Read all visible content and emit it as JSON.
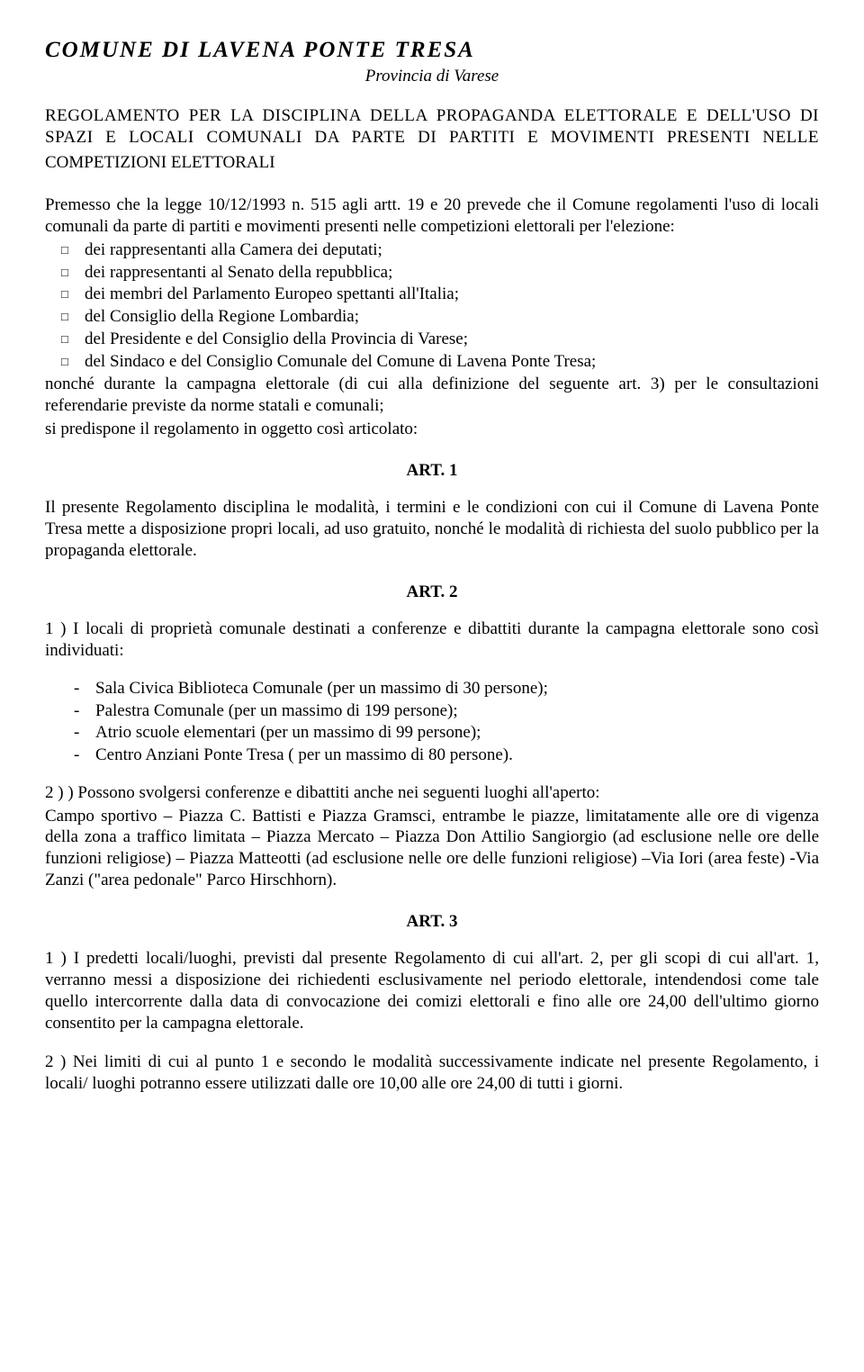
{
  "header": {
    "title": "COMUNE DI LAVENA PONTE TRESA",
    "subtitle": "Provincia di Varese"
  },
  "regulation_title": {
    "line1": "REGOLAMENTO PER LA DISCIPLINA DELLA PROPAGANDA ELETTORALE E DELL'USO DI SPAZI E LOCALI COMUNALI DA PARTE DI PARTITI E MOVIMENTI PRESENTI NELLE",
    "line2": "COMPETIZIONI ELETTORALI"
  },
  "preamble": {
    "intro": "Premesso che la legge 10/12/1993 n. 515 agli artt. 19 e 20 prevede che il Comune regolamenti l'uso di locali comunali da parte di partiti e movimenti presenti nelle competizioni elettorali per l'elezione:",
    "bullets": [
      "dei rappresentanti alla Camera dei deputati;",
      "dei rappresentanti al Senato della repubblica;",
      "dei membri del Parlamento Europeo spettanti all'Italia;",
      "del Consiglio della Regione Lombardia;",
      "del Presidente e del Consiglio della Provincia di Varese;",
      "del Sindaco e del Consiglio Comunale del Comune di Lavena Ponte Tresa;"
    ],
    "closing": "nonché durante la campagna elettorale (di cui alla definizione del seguente art. 3) per le consultazioni referendarie previste da norme statali e comunali;",
    "disposition": "si predispone il regolamento in oggetto così articolato:"
  },
  "art1": {
    "heading": "ART. 1",
    "body": "Il presente Regolamento disciplina le modalità, i termini e le condizioni con cui il Comune di Lavena Ponte Tresa mette a disposizione propri locali, ad uso gratuito, nonché le modalità di richiesta del suolo pubblico per la propaganda elettorale."
  },
  "art2": {
    "heading": "ART. 2",
    "p1": "1 ) I locali di proprietà comunale destinati a conferenze e dibattiti durante la campagna elettorale sono così individuati:",
    "items": [
      "Sala Civica Biblioteca Comunale (per un massimo di 30 persone);",
      "Palestra Comunale (per un massimo di 199 persone);",
      "Atrio scuole elementari (per un massimo di 99 persone);",
      "Centro Anziani Ponte Tresa ( per un massimo di 80 persone)."
    ],
    "p2a": "2 ) ) Possono svolgersi conferenze e dibattiti anche nei seguenti luoghi all'aperto:",
    "p2b": "Campo sportivo – Piazza C. Battisti e Piazza Gramsci, entrambe le piazze, limitatamente alle ore di vigenza della zona a traffico limitata – Piazza Mercato – Piazza Don Attilio Sangiorgio (ad esclusione nelle ore delle funzioni religiose) – Piazza Matteotti (ad esclusione nelle ore delle funzioni religiose) –Via Iori (area feste) -Via Zanzi (\"area pedonale\" Parco Hirschhorn)."
  },
  "art3": {
    "heading": "ART. 3",
    "p1": "1 ) I predetti locali/luoghi, previsti dal presente Regolamento di cui all'art. 2, per gli scopi di cui all'art. 1, verranno messi a disposizione dei richiedenti esclusivamente nel periodo elettorale, intendendosi come tale quello intercorrente dalla data di convocazione dei comizi elettorali e fino alle ore 24,00 dell'ultimo giorno consentito per la campagna elettorale.",
    "p2": "2 ) Nei limiti di cui al punto 1 e secondo le modalità successivamente indicate nel presente Regolamento, i locali/ luoghi potranno essere utilizzati dalle ore 10,00 alle ore 24,00 di tutti i giorni."
  }
}
